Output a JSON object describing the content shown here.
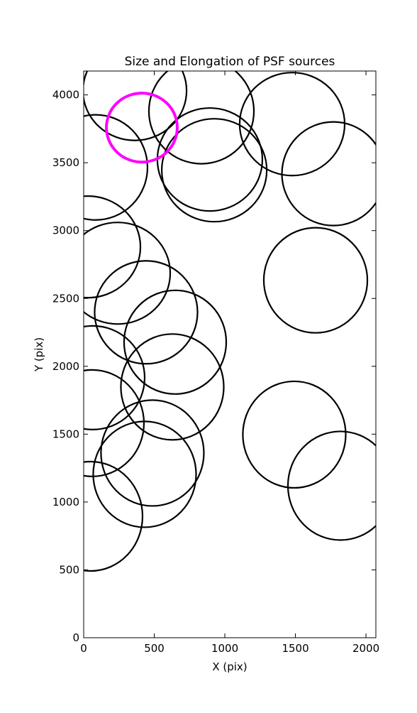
{
  "chart_data": {
    "type": "ellipse",
    "title": "Size and Elongation of PSF sources",
    "x_label": "X (pix)",
    "y_label": "Y (pix)",
    "xlim": [
      0,
      2070
    ],
    "ylim": [
      0,
      4176
    ],
    "xticks": [
      0,
      500,
      1000,
      1500,
      2000
    ],
    "yticks": [
      0,
      500,
      1000,
      1500,
      2000,
      2500,
      3000,
      3500,
      4000
    ],
    "series": [
      {
        "color": "#000000",
        "x": [
          362,
          834,
          1477,
          894,
          925,
          1769,
          85,
          30,
          241,
          442,
          648,
          1643,
          628,
          65,
          60,
          1492,
          487,
          432,
          1819,
          50
        ],
        "y": [
          4031,
          3880,
          3785,
          3524,
          3445,
          3419,
          3466,
          2880,
          2686,
          2398,
          2178,
          2634,
          1848,
          1916,
          1581,
          1497,
          1361,
          1204,
          1120,
          895
        ],
        "widths": [
          734,
          744,
          744,
          744,
          744,
          729,
          734,
          744,
          744,
          729,
          724,
          734,
          729,
          734,
          734,
          729,
          729,
          729,
          744,
          734
        ],
        "heights": [
          733,
          775,
          759,
          759,
          759,
          764,
          775,
          749,
          749,
          759,
          764,
          775,
          780,
          764,
          785,
          785,
          780,
          780,
          801,
          806
        ]
      }
    ],
    "highlight": {
      "color": "#ff00ff",
      "x": 412,
      "y": 3759,
      "width": 502,
      "height": 508
    }
  }
}
